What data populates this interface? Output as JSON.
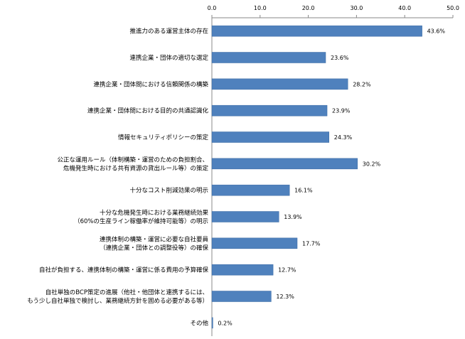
{
  "chart_data": {
    "type": "bar",
    "orientation": "horizontal",
    "title": "",
    "xlabel": "",
    "ylabel": "",
    "xlim": [
      0,
      50
    ],
    "x_ticks": [
      "0.0",
      "10.0",
      "20.0",
      "30.0",
      "40.0",
      "50.0"
    ],
    "axis_position": "top",
    "grid": false,
    "bar_color": "#4f81bd",
    "categories": [
      [
        "推進力のある運営主体の存在"
      ],
      [
        "連携企業・団体の適切な選定"
      ],
      [
        "連携企業・団体間における信頼関係の構築"
      ],
      [
        "連携企業・団体間における目的の共通認識化"
      ],
      [
        "情報セキュリティポリシーの策定"
      ],
      [
        "公正な運用ルール（体制構築・運営のための負担割合、",
        "危機発生時における共有資源の貸出ルール等）の策定"
      ],
      [
        "十分なコスト削減効果の明示"
      ],
      [
        "十分な危機発生時における業務継続効果",
        "（60%の生産ライン稼働率が維持可能等）の明示"
      ],
      [
        "連携体制の構築・運営に必要な自社要員",
        "（連携企業・団体との調整役等）の確保"
      ],
      [
        "自社が負担する、連携体制の構築・運営に係る費用の予算確保"
      ],
      [
        "自社単独のBCP策定の進展（他社・他団体と連携するには、",
        "もう少し自社単独で検討し、業務継続方針を固める必要がある等）"
      ],
      [
        "その他"
      ]
    ],
    "values": [
      43.6,
      23.6,
      28.2,
      23.9,
      24.3,
      30.2,
      16.1,
      13.9,
      17.7,
      12.7,
      12.3,
      0.2
    ],
    "data_labels": [
      "43.6%",
      "23.6%",
      "28.2%",
      "23.9%",
      "24.3%",
      "30.2%",
      "16.1%",
      "13.9%",
      "17.7%",
      "12.7%",
      "12.3%",
      "0.2%"
    ]
  }
}
